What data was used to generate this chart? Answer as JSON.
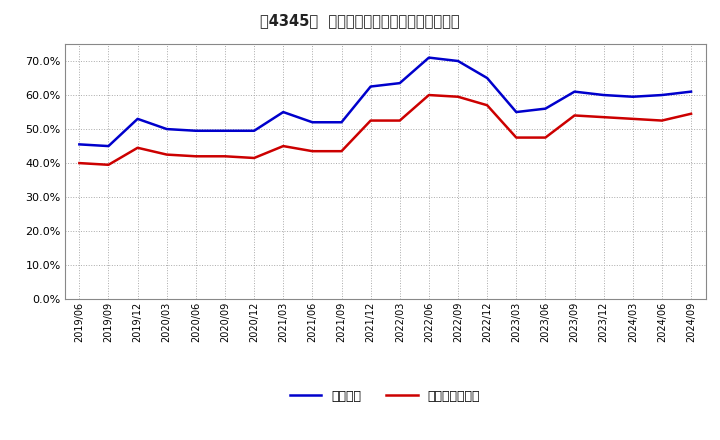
{
  "title_main": "固定比率、固定長期適合率の推移",
  "x_labels": [
    "2019/06",
    "2019/09",
    "2019/12",
    "2020/03",
    "2020/06",
    "2020/09",
    "2020/12",
    "2021/03",
    "2021/06",
    "2021/09",
    "2021/12",
    "2022/03",
    "2022/06",
    "2022/09",
    "2022/12",
    "2023/03",
    "2023/06",
    "2023/09",
    "2023/12",
    "2024/03",
    "2024/06",
    "2024/09"
  ],
  "blue_values": [
    45.5,
    45.0,
    53.0,
    50.0,
    49.5,
    49.5,
    49.5,
    55.0,
    52.0,
    52.0,
    62.5,
    63.5,
    71.0,
    70.0,
    65.0,
    55.0,
    56.0,
    61.0,
    60.0,
    59.5,
    60.0,
    61.0
  ],
  "red_values": [
    40.0,
    39.5,
    44.5,
    42.5,
    42.0,
    42.0,
    41.5,
    45.0,
    43.5,
    43.5,
    52.5,
    52.5,
    60.0,
    59.5,
    57.0,
    47.5,
    47.5,
    54.0,
    53.5,
    53.0,
    52.5,
    54.5
  ],
  "blue_color": "#0000cc",
  "red_color": "#cc0000",
  "bg_color": "#ffffff",
  "grid_color": "#aaaaaa",
  "ylim": [
    0.0,
    75.0
  ],
  "yticks": [
    0.0,
    10.0,
    20.0,
    30.0,
    40.0,
    50.0,
    60.0,
    70.0
  ],
  "legend_blue": "固定比率",
  "legend_red": "固定長期適合率"
}
